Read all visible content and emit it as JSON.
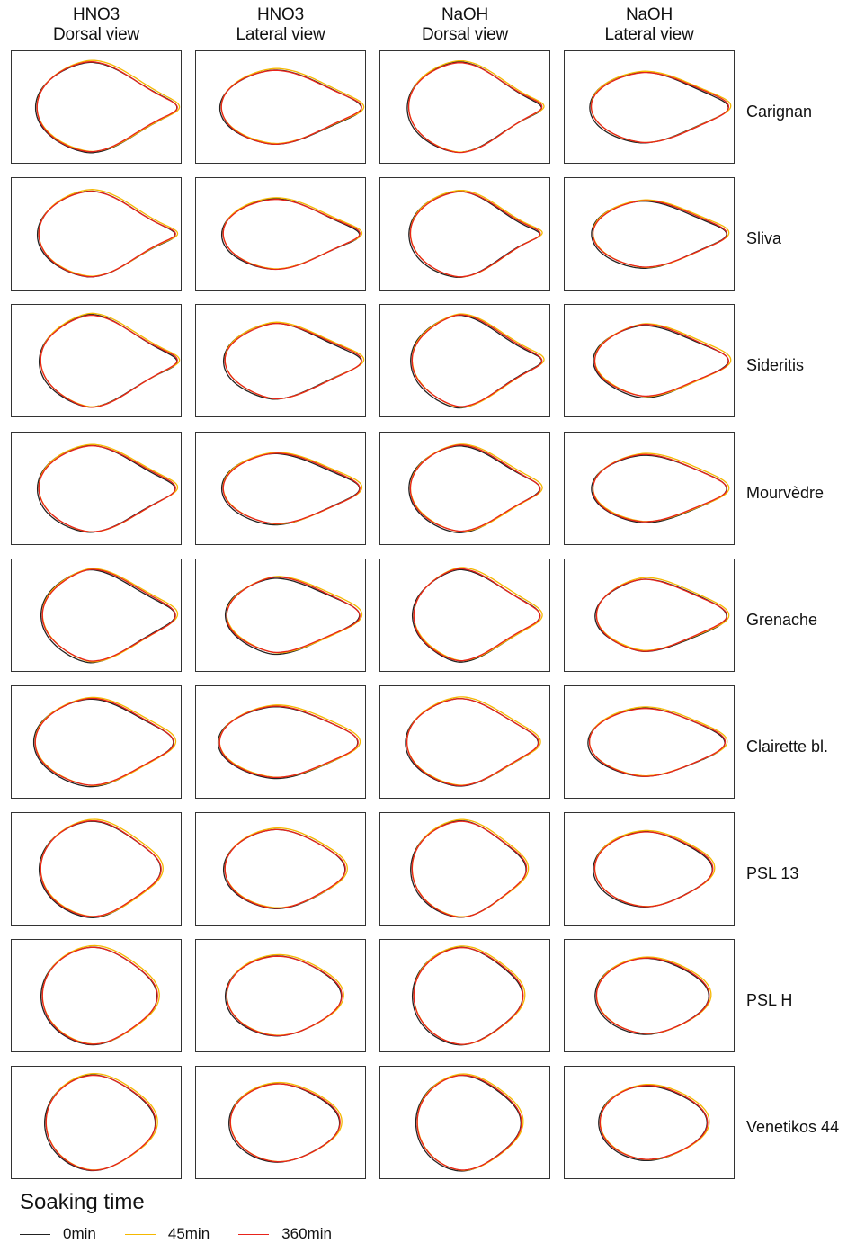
{
  "columns": [
    {
      "line1": "HNO3",
      "line2": "Dorsal view"
    },
    {
      "line1": "HNO3",
      "line2": "Lateral view"
    },
    {
      "line1": "NaOH",
      "line2": "Dorsal view"
    },
    {
      "line1": "NaOH",
      "line2": "Lateral view"
    }
  ],
  "rows": [
    "Carignan",
    "Sliva",
    "Sideritis",
    "Mourvèdre",
    "Grenache",
    "Clairette bl.",
    "PSL 13",
    "PSL H",
    "Venetikos 44"
  ],
  "legend": {
    "title": "Soaking time",
    "items": [
      {
        "label": "0min",
        "color": "#222222"
      },
      {
        "label": "45min",
        "color": "#F5B800"
      },
      {
        "label": "360min",
        "color": "#E8231B"
      }
    ]
  }
}
